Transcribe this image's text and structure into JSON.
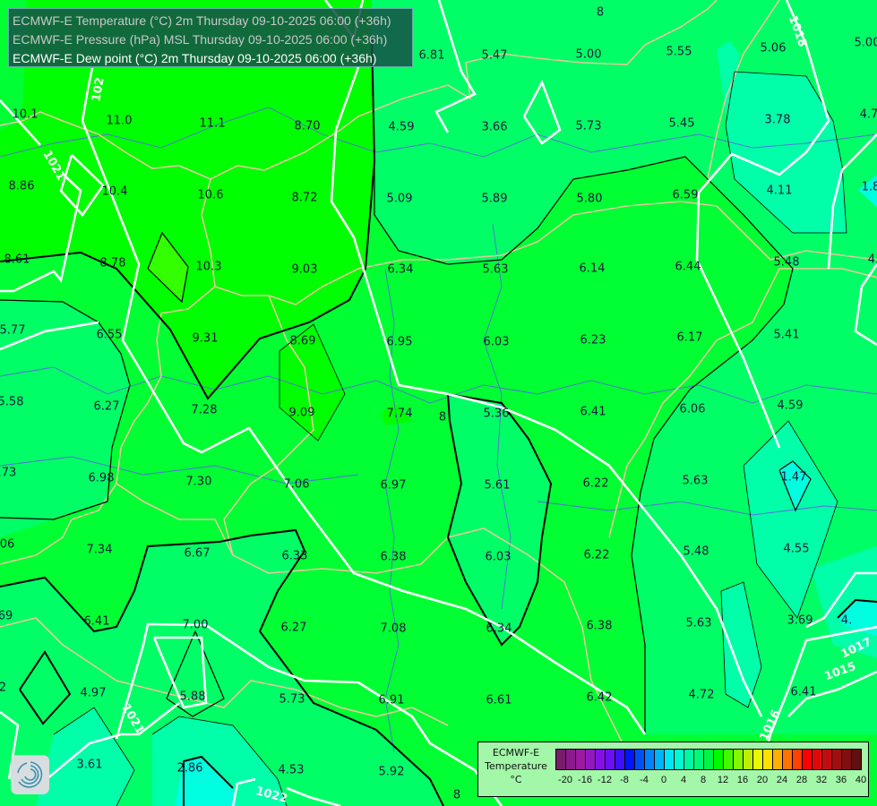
{
  "header": {
    "layers": [
      {
        "label": "ECMWF-E Temperature (°C) 2m Thursday 09-10-2025 06:00 (+36h)",
        "active": false
      },
      {
        "label": "ECMWF-E Pressure (hPa) MSL Thursday 09-10-2025 06:00 (+36h)",
        "active": false
      },
      {
        "label": "ECMWF-E Dew point (°C) 2m Thursday 09-10-2025 06:00 (+36h)",
        "active": true
      }
    ]
  },
  "map": {
    "values": [
      "6.81",
      "8",
      "5.47",
      "5.00",
      "5.55",
      "5.06",
      "5.00",
      "10.1",
      "11.0",
      "11.1",
      "8.70",
      "4.59",
      "3.66",
      "5.73",
      "5.45",
      "3.78",
      "4.7",
      "8.86",
      "10.4",
      "10.6",
      "8.72",
      "5.09",
      "5.89",
      "5.80",
      "6.59",
      "4.11",
      "1.8",
      "8.61",
      "8.78",
      "10.3",
      "9.03",
      "6.34",
      "5.63",
      "6.14",
      "6.44",
      "5.48",
      "4.",
      "5.77",
      "6.55",
      "9.31",
      "8.69",
      "6.95",
      "6.03",
      "6.23",
      "6.17",
      "5.41",
      "5.58",
      "6.27",
      "7.28",
      "9.09",
      "7.74",
      "5.36",
      "6.41",
      "6.06",
      "4.59",
      "8",
      ".73",
      "6.98",
      "7.30",
      "7.06",
      "6.97",
      "5.61",
      "6.22",
      "5.63",
      "1.47",
      ".06",
      "7.34",
      "6.67",
      "6.33",
      "6.38",
      "6.03",
      "6.22",
      "5.48",
      "4.55",
      ".69",
      "6.41",
      "7.00",
      "6.27",
      "7.08",
      "6.34",
      "6.38",
      "5.63",
      "3.69",
      "4.",
      "2",
      "4.97",
      "5.88",
      "5.73",
      "6.91",
      "6.61",
      "6.42",
      "4.72",
      "6.41",
      "3.61",
      "2.86",
      "4.53",
      "5.92",
      "8"
    ],
    "isobar_labels": [
      "102",
      "1021",
      "1021",
      "1022",
      "1018",
      "1017",
      "1015",
      "1016"
    ],
    "fill_colors": {
      "band_10_12": "#33ff00",
      "band_8_10": "#00ff00",
      "band_6_8": "#00ff33",
      "band_4_6": "#00ff66",
      "band_2_4": "#00ffa8",
      "band_0_2": "#00ffe0"
    },
    "isobar_color": "#ffffff",
    "border_color": "#e6c79a",
    "river_color": "#5a6adf"
  },
  "legend": {
    "title_lines": [
      "ECMWF-E",
      "Temperature",
      "°C"
    ],
    "colors": [
      "#781c6a",
      "#8c1a8c",
      "#9c1aa0",
      "#9018c0",
      "#8410e4",
      "#6a10f6",
      "#3c10fa",
      "#0014fa",
      "#0050f4",
      "#0084fa",
      "#00b4fa",
      "#00e6f2",
      "#00f8d4",
      "#00f8a4",
      "#00f878",
      "#00f444",
      "#00f800",
      "#44f800",
      "#84f800",
      "#bcf000",
      "#e8f800",
      "#ffe000",
      "#ffb000",
      "#ff7400",
      "#ff4000",
      "#ff0000",
      "#e00808",
      "#c00c10",
      "#a01010",
      "#7e1010",
      "#601010"
    ],
    "ticks": [
      "-20",
      "-16",
      "-12",
      "-8",
      "-4",
      "0",
      "4",
      "8",
      "12",
      "16",
      "20",
      "24",
      "28",
      "32",
      "36",
      "40"
    ]
  },
  "logo": {
    "icon": "swirl-logo-icon"
  }
}
